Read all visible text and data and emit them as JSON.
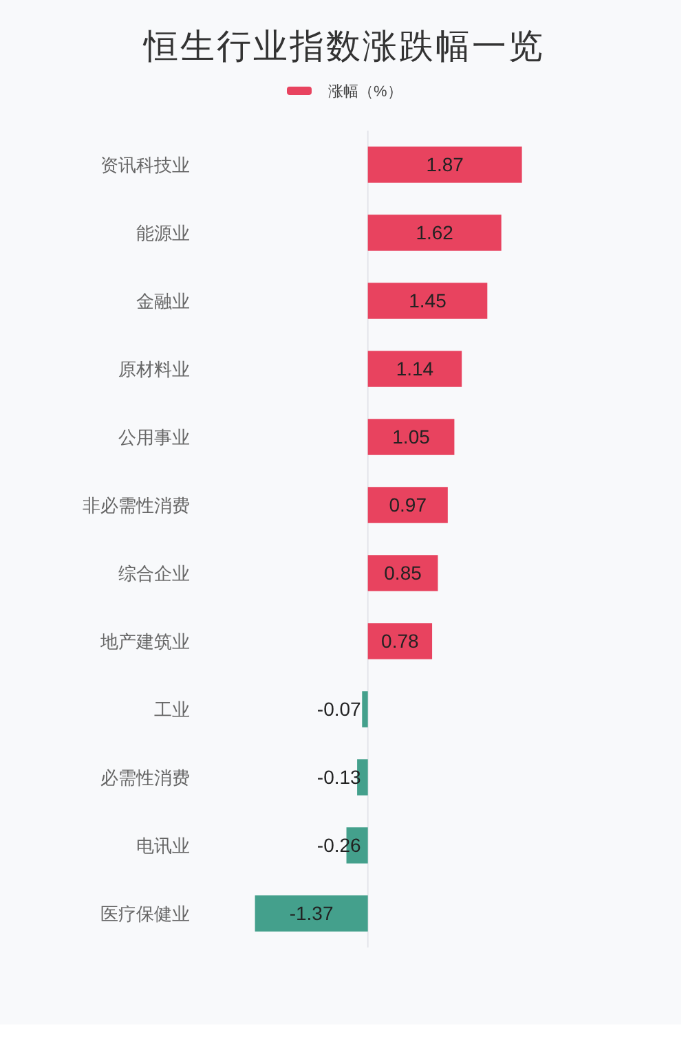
{
  "chart_data": {
    "type": "bar",
    "orientation": "horizontal",
    "title": "恒生行业指数涨跌幅一览",
    "categories": [
      "资讯科技业",
      "能源业",
      "金融业",
      "原材料业",
      "公用事业",
      "非必需性消费",
      "综合企业",
      "地产建筑业",
      "工业",
      "必需性消费",
      "电讯业",
      "医疗保健业"
    ],
    "series": [
      {
        "name": "涨幅（%）",
        "color": "#e8435f",
        "colors": [
          "#e8435f",
          "#e8435f",
          "#e8435f",
          "#e8435f",
          "#e8435f",
          "#e8435f",
          "#e8435f",
          "#e8435f",
          "#44a08c",
          "#44a08c",
          "#44a08c",
          "#44a08c"
        ],
        "values": [
          1.87,
          1.62,
          1.45,
          1.14,
          1.05,
          0.97,
          0.85,
          0.78,
          -0.07,
          -0.13,
          -0.26,
          -1.37
        ]
      }
    ],
    "data_labels": true,
    "legend": "top",
    "tick_labels": "y"
  }
}
